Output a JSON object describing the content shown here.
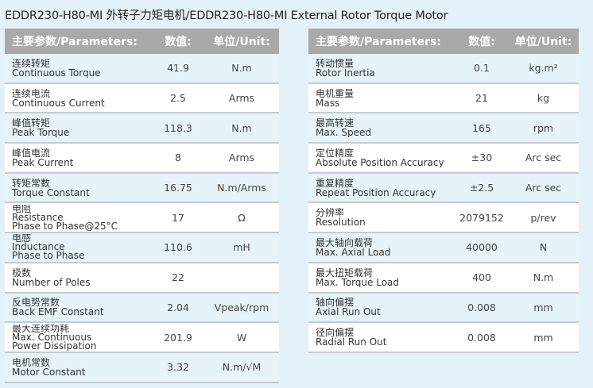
{
  "title": "EDDR230-H80-MI 外转子力矩电机/EDDR230-H80-MI External Rotor Torque Motor",
  "header": {
    "param": "主要参数/Parameters:",
    "value": "数值:",
    "unit": "单位/Unit:"
  },
  "left": [
    {
      "zh": "连续转矩",
      "en": [
        "Continuous Torque"
      ],
      "value": "41.9",
      "unit": "N.m"
    },
    {
      "zh": "连续电流",
      "en": [
        "Continuous Current"
      ],
      "value": "2.5",
      "unit": "Arms"
    },
    {
      "zh": "峰值转矩",
      "en": [
        "Peak Torque"
      ],
      "value": "118.3",
      "unit": "N.m"
    },
    {
      "zh": "峰值电流",
      "en": [
        "Peak Current"
      ],
      "value": "8",
      "unit": "Arms"
    },
    {
      "zh": "转矩常数",
      "en": [
        "Torque Constant"
      ],
      "value": "16.75",
      "unit": "N.m/Arms"
    },
    {
      "zh": "电阻",
      "en": [
        "Resistance",
        "Phase to Phase@25°C"
      ],
      "value": "17",
      "unit": "Ω"
    },
    {
      "zh": "电感",
      "en": [
        "Inductance",
        "Phase to Phase"
      ],
      "value": "110.6",
      "unit": "mH"
    },
    {
      "zh": "极数",
      "en": [
        "Number of Poles"
      ],
      "value": "22",
      "unit": ""
    },
    {
      "zh": "反电势常数",
      "en": [
        "Back EMF Constant"
      ],
      "value": "2.04",
      "unit": "Vpeak/rpm"
    },
    {
      "zh": "最大连续功耗",
      "en": [
        "Max. Continuous",
        "Power Dissipation"
      ],
      "value": "201.9",
      "unit": "W"
    },
    {
      "zh": "电机常数",
      "en": [
        "Motor Constant"
      ],
      "value": "3.32",
      "unit": "N.m/√M"
    }
  ],
  "right": [
    {
      "zh": "转动惯量",
      "en": [
        "Rotor Inertia"
      ],
      "value": "0.1",
      "unit": "kg.m²"
    },
    {
      "zh": "电机重量",
      "en": [
        "Mass"
      ],
      "value": "21",
      "unit": "kg"
    },
    {
      "zh": "最高转速",
      "en": [
        "Max. Speed"
      ],
      "value": "165",
      "unit": "rpm"
    },
    {
      "zh": "定位精度",
      "en": [
        "Absolute Position Accuracy"
      ],
      "value": "±30",
      "unit": "Arc sec"
    },
    {
      "zh": "重复精度",
      "en": [
        "Repeat Position Accuracy"
      ],
      "value": "±2.5",
      "unit": "Arc sec"
    },
    {
      "zh": "分辨率",
      "en": [
        "Resolution"
      ],
      "value": "2079152",
      "unit": "p/rev"
    },
    {
      "zh": "最大轴向载荷",
      "en": [
        "Max. Axial Load"
      ],
      "value": "40000",
      "unit": "N"
    },
    {
      "zh": "最大扭矩载荷",
      "en": [
        "Max. Torque Load"
      ],
      "value": "400",
      "unit": "N.m"
    },
    {
      "zh": "轴向偏摆",
      "en": [
        "Axial Run Out"
      ],
      "value": "0.008",
      "unit": "mm"
    },
    {
      "zh": "径向偏摆",
      "en": [
        "Radial Run Out"
      ],
      "value": "0.008",
      "unit": "mm"
    }
  ]
}
